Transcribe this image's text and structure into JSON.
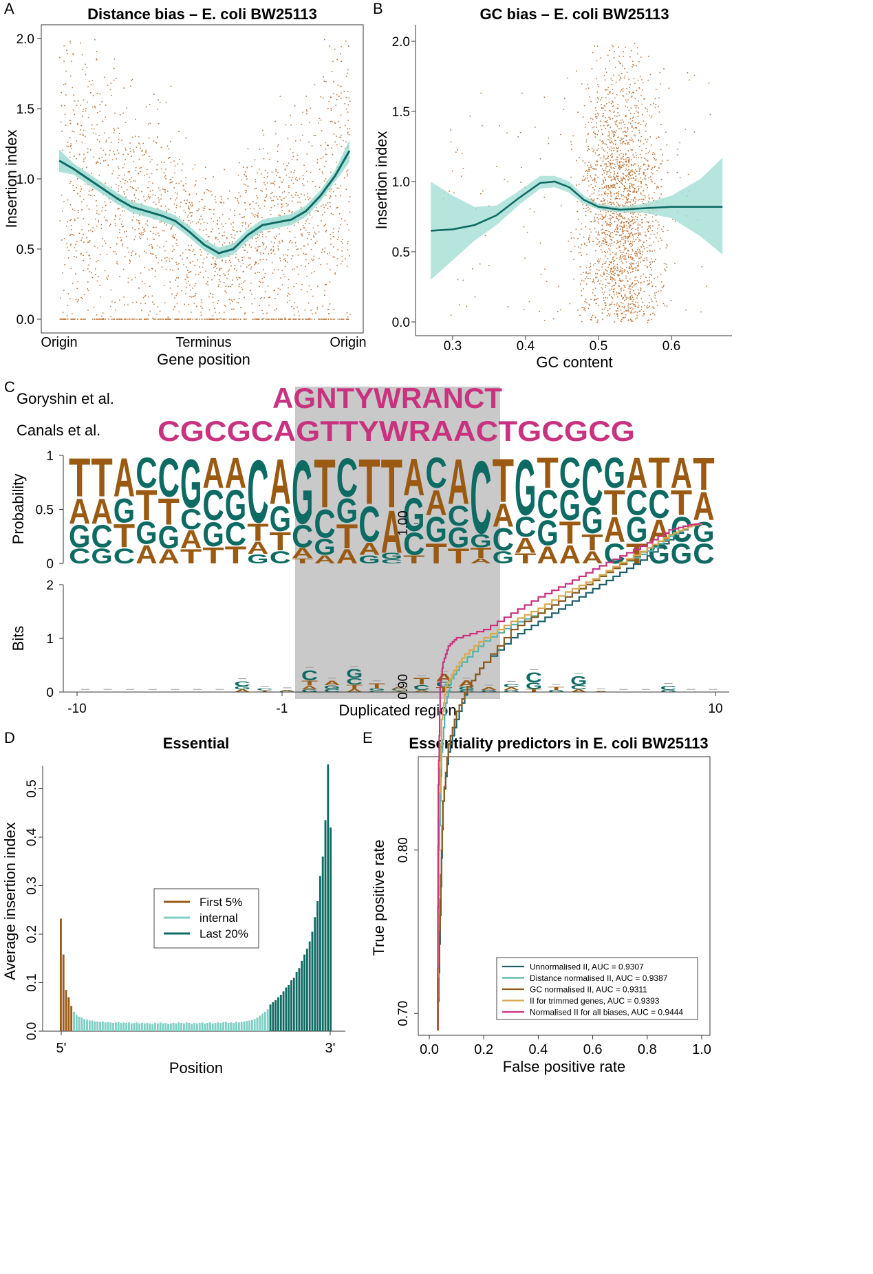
{
  "colors": {
    "teal": "#0d6b63",
    "teal_band": "#9edcd3",
    "light_teal": "#7ed0c5",
    "brown": "#9a5a12",
    "dot": "#c0773a",
    "magenta": "#c8327f",
    "gold": "#d9a84e",
    "roc_teal": "#1a5f6a",
    "roc_lightteal": "#52b3ad",
    "roc_brown": "#8a5a1e",
    "gray_box": "#c9c9c9"
  },
  "panel_letters": [
    "A",
    "B",
    "C",
    "D",
    "E"
  ],
  "chart_data": [
    {
      "id": "A",
      "type": "scatter",
      "title": "Distance bias – E. coli BW25113",
      "xlabel": "Gene position",
      "ylabel": "Insertion index",
      "xticks": [
        "Origin",
        "Terminus",
        "Origin"
      ],
      "yticks": [
        "0.0",
        "0.5",
        "1.0",
        "1.5",
        "2.0"
      ],
      "ylim": [
        0,
        2.05
      ],
      "smooth_fit": {
        "x": [
          0.0,
          0.05,
          0.1,
          0.15,
          0.2,
          0.25,
          0.3,
          0.35,
          0.4,
          0.45,
          0.5,
          0.55,
          0.6,
          0.65,
          0.7,
          0.75,
          0.8,
          0.85,
          0.9,
          0.95,
          1.0
        ],
        "y": [
          1.13,
          1.07,
          1.0,
          0.93,
          0.86,
          0.8,
          0.77,
          0.74,
          0.7,
          0.62,
          0.53,
          0.47,
          0.5,
          0.6,
          0.67,
          0.69,
          0.71,
          0.77,
          0.88,
          1.02,
          1.2
        ],
        "band_halfwidth": 0.04
      }
    },
    {
      "id": "B",
      "type": "scatter",
      "title": "GC bias – E. coli BW25113",
      "xlabel": "GC content",
      "ylabel": "Insertion index",
      "xticks": [
        "0.3",
        "0.4",
        "0.5",
        "0.6"
      ],
      "yticks": [
        "0.0",
        "0.5",
        "1.0",
        "1.5",
        "2.0"
      ],
      "xlim": [
        0.25,
        0.68
      ],
      "ylim": [
        0,
        2.05
      ],
      "smooth_fit": {
        "x": [
          0.27,
          0.3,
          0.33,
          0.36,
          0.39,
          0.42,
          0.44,
          0.46,
          0.48,
          0.5,
          0.53,
          0.56,
          0.6,
          0.64,
          0.67
        ],
        "y": [
          0.65,
          0.66,
          0.69,
          0.76,
          0.88,
          0.99,
          1.0,
          0.96,
          0.87,
          0.82,
          0.8,
          0.81,
          0.82,
          0.82,
          0.82
        ],
        "band_upper": [
          1.0,
          0.9,
          0.82,
          0.83,
          0.93,
          1.04,
          1.04,
          1.0,
          0.9,
          0.84,
          0.82,
          0.84,
          0.9,
          1.02,
          1.17
        ],
        "band_lower": [
          0.3,
          0.44,
          0.58,
          0.69,
          0.83,
          0.95,
          0.96,
          0.92,
          0.84,
          0.8,
          0.78,
          0.78,
          0.74,
          0.61,
          0.48
        ]
      }
    },
    {
      "id": "C",
      "type": "table",
      "motif_labels": [
        "Goryshin et al.",
        "Canals et al."
      ],
      "motif_sequences": [
        "AGNTYWRANCT",
        "CGCGCAGTTYWRAACTGCGCG"
      ],
      "prob_ylabel": "Probability",
      "prob_yticks": [
        "0",
        "0.5",
        "1"
      ],
      "bits_ylabel": "Bits",
      "bits_yticks": [
        "0",
        "1",
        "2"
      ],
      "xlabel": "Duplicated region",
      "xticks": [
        "-10",
        "-1",
        "10"
      ],
      "probability_logo": [
        {
          "T": 0.38,
          "A": 0.25,
          "G": 0.22,
          "C": 0.15
        },
        {
          "T": 0.38,
          "A": 0.25,
          "C": 0.22,
          "G": 0.15
        },
        {
          "A": 0.38,
          "G": 0.24,
          "T": 0.23,
          "C": 0.15
        },
        {
          "T": 0.3,
          "C": 0.3,
          "G": 0.22,
          "A": 0.18
        },
        {
          "C": 0.38,
          "T": 0.26,
          "G": 0.22,
          "A": 0.14
        },
        {
          "G": 0.48,
          "A": 0.18,
          "C": 0.2,
          "T": 0.14
        },
        {
          "C": 0.3,
          "G": 0.24,
          "A": 0.3,
          "T": 0.16
        },
        {
          "G": 0.3,
          "A": 0.3,
          "C": 0.23,
          "T": 0.17
        },
        {
          "C": 0.62,
          "T": 0.17,
          "A": 0.12,
          "G": 0.09
        },
        {
          "A": 0.45,
          "G": 0.25,
          "T": 0.18,
          "C": 0.12
        },
        {
          "G": 0.63,
          "C": 0.22,
          "A": 0.1,
          "T": 0.05
        },
        {
          "T": 0.48,
          "C": 0.28,
          "G": 0.16,
          "A": 0.08
        },
        {
          "C": 0.38,
          "T": 0.24,
          "G": 0.24,
          "A": 0.14
        },
        {
          "T": 0.45,
          "C": 0.35,
          "A": 0.12,
          "G": 0.08
        },
        {
          "A": 0.42,
          "T": 0.48,
          "G": 0.06,
          "C": 0.04
        },
        {
          "A": 0.37,
          "G": 0.33,
          "C": 0.22,
          "T": 0.08
        },
        {
          "G": 0.25,
          "A": 0.25,
          "C": 0.3,
          "T": 0.2
        },
        {
          "A": 0.45,
          "G": 0.2,
          "C": 0.2,
          "T": 0.15
        },
        {
          "C": 0.72,
          "G": 0.13,
          "T": 0.1,
          "A": 0.05
        },
        {
          "T": 0.43,
          "C": 0.22,
          "A": 0.23,
          "G": 0.12
        },
        {
          "G": 0.55,
          "C": 0.2,
          "A": 0.15,
          "T": 0.1
        },
        {
          "C": 0.28,
          "T": 0.3,
          "G": 0.25,
          "A": 0.17
        },
        {
          "G": 0.3,
          "C": 0.3,
          "T": 0.22,
          "A": 0.18
        },
        {
          "C": 0.46,
          "G": 0.26,
          "T": 0.16,
          "A": 0.12
        },
        {
          "G": 0.3,
          "A": 0.25,
          "T": 0.25,
          "C": 0.2
        },
        {
          "A": 0.3,
          "G": 0.25,
          "C": 0.25,
          "T": 0.2
        },
        {
          "T": 0.3,
          "C": 0.28,
          "A": 0.22,
          "G": 0.2
        },
        {
          "A": 0.3,
          "C": 0.25,
          "T": 0.25,
          "G": 0.2
        },
        {
          "T": 0.32,
          "A": 0.28,
          "C": 0.2,
          "G": 0.2
        }
      ],
      "dup_start": 10,
      "dup_end": 19,
      "bits_logo": [
        {
          "T": 0.01
        },
        {
          "G": 0.01
        },
        {
          "A": 0.01
        },
        {
          "C": 0.01
        },
        {
          "T": 0.01
        },
        {
          "A": 0.01
        },
        {
          "G": 0.01
        },
        {
          "C": 0.1,
          "G": 0.06,
          "A": 0.05
        },
        {
          "C": 0.04,
          "T": 0.03
        },
        {
          "G": 0.02,
          "A": 0.02
        },
        {
          "C": 0.2,
          "T": 0.1,
          "A": 0.07,
          "G": 0.05
        },
        {
          "A": 0.09,
          "G": 0.07,
          "C": 0.06
        },
        {
          "G": 0.18,
          "C": 0.12,
          "T": 0.08,
          "A": 0.06
        },
        {
          "T": 0.1,
          "G": 0.04,
          "C": 0.03
        },
        {
          "A": 0.04,
          "T": 0.03,
          "C": 0.03
        },
        {
          "T": 0.13,
          "C": 0.1,
          "A": 0.04
        },
        {
          "A": 0.15,
          "T": 0.1,
          "G": 0.1
        },
        {
          "A": 0.12,
          "G": 0.06,
          "C": 0.04
        },
        {
          "A": 0.05,
          "G": 0.04
        },
        {
          "C": 0.07,
          "A": 0.05,
          "G": 0.04
        },
        {
          "C": 0.2,
          "G": 0.12,
          "T": 0.06
        },
        {
          "T": 0.06,
          "G": 0.04
        },
        {
          "G": 0.18,
          "C": 0.08,
          "A": 0.05
        },
        {
          "A": 0.02
        },
        {
          "C": 0.01
        },
        {
          "G": 0.01
        },
        {
          "C": 0.08,
          "G": 0.04
        },
        {
          "T": 0.01
        },
        {
          "A": 0.01
        }
      ]
    },
    {
      "id": "D",
      "type": "bar",
      "title": "Essential",
      "xlabel": "Position",
      "ylabel": "Average insertion index",
      "xticks": [
        "5'",
        "3'"
      ],
      "yticks": [
        "0.0",
        "0.1",
        "0.2",
        "0.3",
        "0.4",
        "0.5"
      ],
      "ylim": [
        0,
        0.55
      ],
      "series": [
        {
          "name": "First 5%",
          "values": [
            0.232,
            0.158,
            0.085,
            0.07,
            0.052
          ]
        },
        {
          "name": "internal",
          "values": [
            0.04,
            0.033,
            0.03,
            0.028,
            0.025,
            0.024,
            0.022,
            0.022,
            0.02,
            0.02,
            0.019,
            0.02,
            0.018,
            0.019,
            0.018,
            0.017,
            0.018,
            0.019,
            0.017,
            0.018,
            0.017,
            0.018,
            0.016,
            0.017,
            0.018,
            0.016,
            0.017,
            0.016,
            0.017,
            0.016,
            0.015,
            0.017,
            0.016,
            0.018,
            0.016,
            0.017,
            0.015,
            0.016,
            0.017,
            0.016,
            0.018,
            0.017,
            0.016,
            0.018,
            0.017,
            0.015,
            0.017,
            0.016,
            0.017,
            0.018,
            0.016,
            0.017,
            0.018,
            0.016,
            0.017,
            0.018,
            0.017,
            0.018,
            0.019,
            0.017,
            0.018,
            0.017,
            0.019,
            0.018,
            0.019,
            0.02,
            0.021,
            0.022,
            0.023,
            0.025,
            0.028,
            0.032,
            0.036,
            0.04,
            0.045
          ]
        },
        {
          "name": "Last 20%",
          "values": [
            0.055,
            0.06,
            0.064,
            0.07,
            0.075,
            0.082,
            0.09,
            0.095,
            0.105,
            0.11,
            0.122,
            0.13,
            0.145,
            0.158,
            0.17,
            0.185,
            0.205,
            0.235,
            0.268,
            0.32,
            0.36,
            0.435,
            0.55,
            0.42
          ]
        }
      ],
      "legend_location": "center"
    },
    {
      "id": "E",
      "type": "line",
      "title": "Essentiality predictors in E. coli BW25113",
      "xlabel": "False positive rate",
      "ylabel": "True positive rate",
      "xticks": [
        "0.0",
        "0.2",
        "0.4",
        "0.6",
        "0.8",
        "1.0"
      ],
      "yticks": [
        "0.70",
        "0.80",
        "0.90",
        "1.00"
      ],
      "xlim": [
        0,
        1
      ],
      "ylim": [
        0.69,
        1.005
      ],
      "legend_location": "bottom-right",
      "series": [
        {
          "name": "Unnormalised II, AUC =  0.9307",
          "x": [
            0.03,
            0.04,
            0.05,
            0.07,
            0.1,
            0.14,
            0.2,
            0.3,
            0.4,
            0.5,
            0.6,
            0.7,
            0.8,
            0.88,
            0.95,
            1.0
          ],
          "y": [
            0.69,
            0.76,
            0.83,
            0.86,
            0.88,
            0.9,
            0.915,
            0.93,
            0.94,
            0.95,
            0.96,
            0.97,
            0.98,
            0.99,
            0.998,
            1.0
          ]
        },
        {
          "name": "Distance normalised II, AUC =  0.9387",
          "x": [
            0.03,
            0.035,
            0.045,
            0.06,
            0.08,
            0.12,
            0.2,
            0.3,
            0.4,
            0.5,
            0.6,
            0.7,
            0.8,
            0.88,
            0.95,
            1.0
          ],
          "y": [
            0.69,
            0.8,
            0.86,
            0.89,
            0.905,
            0.915,
            0.928,
            0.938,
            0.945,
            0.955,
            0.965,
            0.975,
            0.983,
            0.992,
            0.998,
            1.0
          ]
        },
        {
          "name": "GC normalised II, AUC =  0.9311",
          "x": [
            0.03,
            0.04,
            0.05,
            0.07,
            0.1,
            0.14,
            0.2,
            0.3,
            0.4,
            0.5,
            0.6,
            0.7,
            0.8,
            0.88,
            0.95,
            1.0
          ],
          "y": [
            0.69,
            0.77,
            0.83,
            0.865,
            0.885,
            0.9,
            0.915,
            0.935,
            0.945,
            0.955,
            0.965,
            0.975,
            0.985,
            0.993,
            0.998,
            1.0
          ]
        },
        {
          "name": "II for trimmed genes, AUC =  0.9393",
          "x": [
            0.03,
            0.035,
            0.045,
            0.06,
            0.09,
            0.13,
            0.2,
            0.3,
            0.4,
            0.5,
            0.6,
            0.7,
            0.8,
            0.88,
            0.95,
            1.0
          ],
          "y": [
            0.69,
            0.82,
            0.88,
            0.9,
            0.91,
            0.92,
            0.93,
            0.94,
            0.948,
            0.958,
            0.966,
            0.976,
            0.985,
            0.993,
            0.998,
            1.0
          ]
        },
        {
          "name": "Normalised II for all biases, AUC =  0.9444",
          "x": [
            0.03,
            0.033,
            0.04,
            0.05,
            0.07,
            0.1,
            0.2,
            0.3,
            0.4,
            0.5,
            0.6,
            0.7,
            0.8,
            0.88,
            0.95,
            1.0
          ],
          "y": [
            0.69,
            0.84,
            0.9,
            0.915,
            0.925,
            0.93,
            0.935,
            0.945,
            0.955,
            0.963,
            0.972,
            0.98,
            0.988,
            0.996,
            0.999,
            1.0
          ]
        }
      ]
    }
  ]
}
